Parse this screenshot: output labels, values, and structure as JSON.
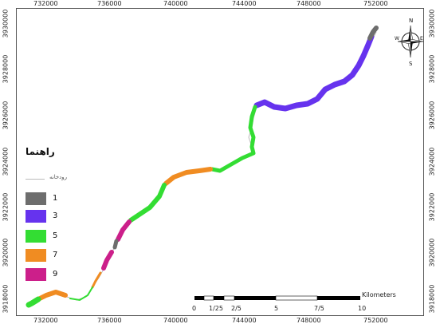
{
  "axes": {
    "x_ticks": [
      "732000",
      "736000",
      "740000",
      "744000",
      "748000",
      "752000"
    ],
    "y_ticks": [
      "3918000",
      "3920000",
      "3922000",
      "3924000",
      "3926000",
      "3928000",
      "3930000"
    ]
  },
  "legend": {
    "title": "راهنما",
    "river_label": "رودخانه",
    "river_color": "#bbbbbb",
    "items": [
      {
        "label": "1",
        "color": "#6d6d6d"
      },
      {
        "label": "3",
        "color": "#6633ee"
      },
      {
        "label": "5",
        "color": "#33dd33"
      },
      {
        "label": "7",
        "color": "#f08c22"
      },
      {
        "label": "9",
        "color": "#cc1f8a"
      }
    ]
  },
  "scalebar": {
    "unit": "Kilometers",
    "labels": [
      "0",
      "1/25",
      "2/5",
      "5",
      "7/5",
      "10"
    ]
  },
  "north_arrow": {
    "n": "N",
    "s": "S",
    "e": "E",
    "w": "W"
  }
}
